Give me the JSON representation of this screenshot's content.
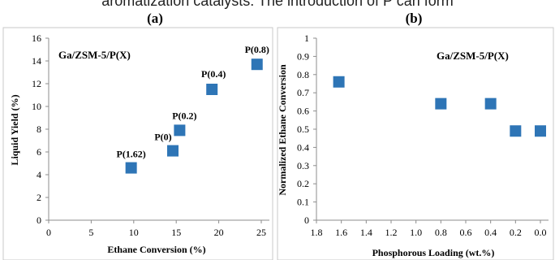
{
  "caption_fragment": "aromatization catalysts. The introduction of P can form",
  "colors": {
    "marker": "#2e75b6",
    "frame": "#c8c8c8",
    "axis": "#8c8c8c"
  },
  "chart_data": [
    {
      "type": "scatter",
      "panel_label": "(a)",
      "title": "Ga/ZSM-5/P(X)",
      "xlabel": "Ethane Conversion (%)",
      "ylabel": "Liquid Yield (%)",
      "xlim": [
        0,
        25
      ],
      "ylim": [
        0,
        16
      ],
      "xticks": [
        0,
        5,
        10,
        15,
        20,
        25
      ],
      "yticks": [
        0,
        2,
        4,
        6,
        8,
        10,
        12,
        14,
        16
      ],
      "grid": false,
      "points": [
        {
          "x": 9.7,
          "y": 4.6,
          "label": "P(1.62)"
        },
        {
          "x": 14.6,
          "y": 6.1,
          "label": "P(0)"
        },
        {
          "x": 15.4,
          "y": 7.9,
          "label": "P(0.2)"
        },
        {
          "x": 19.2,
          "y": 11.5,
          "label": "P(0.4)"
        },
        {
          "x": 24.5,
          "y": 13.7,
          "label": "P(0.8)"
        }
      ]
    },
    {
      "type": "scatter",
      "panel_label": "(b)",
      "title": "Ga/ZSM-5/P(X)",
      "xlabel": "Phosphorous Loading (wt.%)",
      "ylabel": "Normalized Ethane Conversion",
      "xlim": [
        1.8,
        0.0
      ],
      "ylim": [
        0,
        1
      ],
      "xticks": [
        "1.8",
        "1.6",
        "1.4",
        "1.2",
        "1.0",
        "0.8",
        "0.6",
        "0.4",
        "0.2",
        "0.0"
      ],
      "yticks": [
        "0",
        "0.1",
        "0.2",
        "0.3",
        "0.4",
        "0.5",
        "0.6",
        "0.7",
        "0.8",
        "0.9",
        "1"
      ],
      "grid": false,
      "points": [
        {
          "x": 1.62,
          "y": 0.76
        },
        {
          "x": 0.8,
          "y": 0.64
        },
        {
          "x": 0.4,
          "y": 0.64
        },
        {
          "x": 0.2,
          "y": 0.49
        },
        {
          "x": 0.0,
          "y": 0.49
        }
      ]
    }
  ]
}
